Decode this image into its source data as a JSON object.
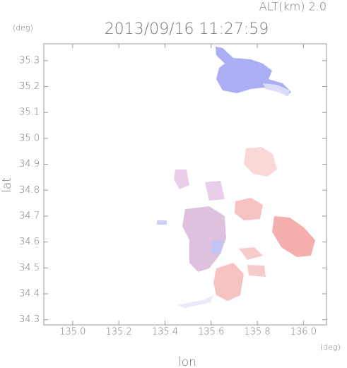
{
  "chart_data": {
    "type": "map",
    "title": "2013/09/16 11:27:59",
    "subtitle": "ALT(km) 2.0",
    "x_label": "lon",
    "y_label": "lat",
    "x_unit": "(deg)",
    "y_unit": "(deg)",
    "xlim": [
      134.875,
      136.1
    ],
    "ylim": [
      34.28,
      35.365
    ],
    "xticks": [
      {
        "value": 135.0,
        "label": "135.0"
      },
      135.2,
      135.4,
      135.6,
      135.8,
      {
        "value": 136.0,
        "label": "136.0"
      }
    ],
    "yticks": [
      35.3,
      35.2,
      35.1,
      {
        "value": 35.0,
        "label": "35.0"
      },
      34.9,
      34.8,
      34.7,
      34.6,
      34.5,
      34.4,
      34.3
    ]
  }
}
